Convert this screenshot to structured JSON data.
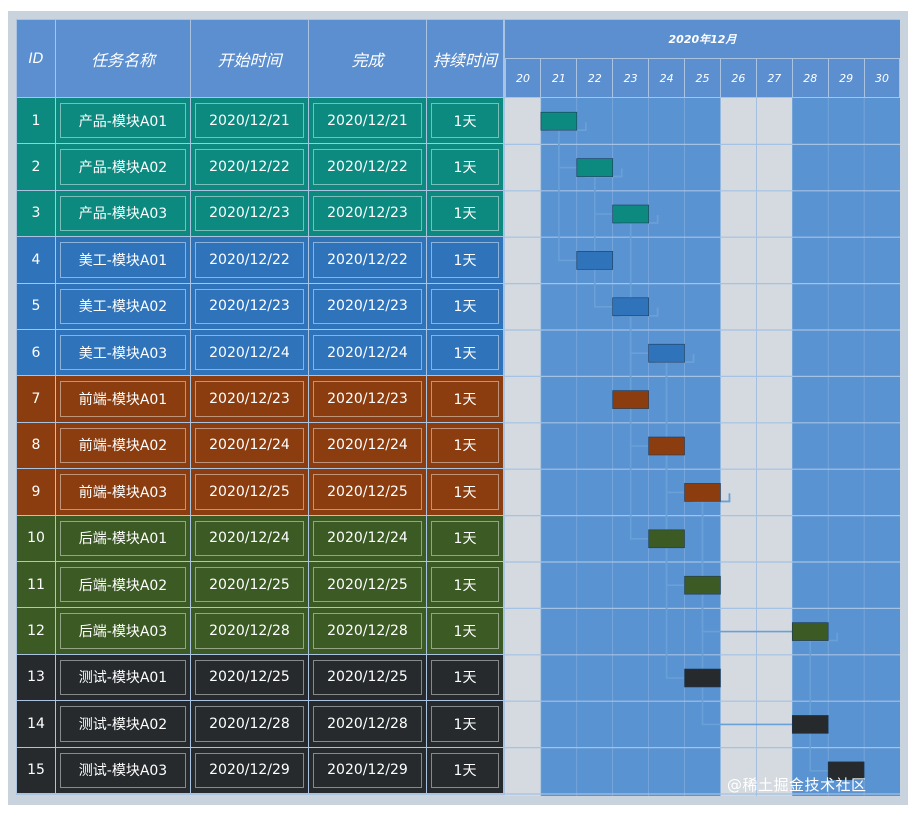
{
  "columns": {
    "id": "ID",
    "name": "任务名称",
    "start": "开始时间",
    "end": "完成",
    "duration": "持续时间"
  },
  "month_label": "2020年12月",
  "days": [
    "20",
    "21",
    "22",
    "23",
    "24",
    "25",
    "26",
    "27",
    "28",
    "29",
    "30"
  ],
  "weekend_days": [
    "20",
    "26",
    "27"
  ],
  "group_colors": {
    "product": "#0c8a80",
    "design": "#2f74bb",
    "frontend": "#8b3d10",
    "backend": "#3c5a24",
    "test": "#262a2d"
  },
  "watermark": "@稀土掘金技术社区",
  "chart_data": {
    "type": "gantt",
    "title": "2020年12月",
    "x_categories": [
      "20",
      "21",
      "22",
      "23",
      "24",
      "25",
      "26",
      "27",
      "28",
      "29",
      "30"
    ],
    "tasks": [
      {
        "id": "1",
        "name": "产品-模块A01",
        "start": "2020/12/21",
        "end": "2020/12/21",
        "duration": "1天",
        "group": "product",
        "day": 21
      },
      {
        "id": "2",
        "name": "产品-模块A02",
        "start": "2020/12/22",
        "end": "2020/12/22",
        "duration": "1天",
        "group": "product",
        "day": 22
      },
      {
        "id": "3",
        "name": "产品-模块A03",
        "start": "2020/12/23",
        "end": "2020/12/23",
        "duration": "1天",
        "group": "product",
        "day": 23
      },
      {
        "id": "4",
        "name": "美工-模块A01",
        "start": "2020/12/22",
        "end": "2020/12/22",
        "duration": "1天",
        "group": "design",
        "day": 22
      },
      {
        "id": "5",
        "name": "美工-模块A02",
        "start": "2020/12/23",
        "end": "2020/12/23",
        "duration": "1天",
        "group": "design",
        "day": 23
      },
      {
        "id": "6",
        "name": "美工-模块A03",
        "start": "2020/12/24",
        "end": "2020/12/24",
        "duration": "1天",
        "group": "design",
        "day": 24
      },
      {
        "id": "7",
        "name": "前端-模块A01",
        "start": "2020/12/23",
        "end": "2020/12/23",
        "duration": "1天",
        "group": "frontend",
        "day": 23
      },
      {
        "id": "8",
        "name": "前端-模块A02",
        "start": "2020/12/24",
        "end": "2020/12/24",
        "duration": "1天",
        "group": "frontend",
        "day": 24
      },
      {
        "id": "9",
        "name": "前端-模块A03",
        "start": "2020/12/25",
        "end": "2020/12/25",
        "duration": "1天",
        "group": "frontend",
        "day": 25
      },
      {
        "id": "10",
        "name": "后端-模块A01",
        "start": "2020/12/24",
        "end": "2020/12/24",
        "duration": "1天",
        "group": "backend",
        "day": 24
      },
      {
        "id": "11",
        "name": "后端-模块A02",
        "start": "2020/12/25",
        "end": "2020/12/25",
        "duration": "1天",
        "group": "backend",
        "day": 25
      },
      {
        "id": "12",
        "name": "后端-模块A03",
        "start": "2020/12/28",
        "end": "2020/12/28",
        "duration": "1天",
        "group": "backend",
        "day": 28
      },
      {
        "id": "13",
        "name": "测试-模块A01",
        "start": "2020/12/25",
        "end": "2020/12/25",
        "duration": "1天",
        "group": "test",
        "day": 25
      },
      {
        "id": "14",
        "name": "测试-模块A02",
        "start": "2020/12/28",
        "end": "2020/12/28",
        "duration": "1天",
        "group": "test",
        "day": 28
      },
      {
        "id": "15",
        "name": "测试-模块A03",
        "start": "2020/12/29",
        "end": "2020/12/29",
        "duration": "1天",
        "group": "test",
        "day": 29
      }
    ],
    "dependencies": [
      [
        "1",
        "2"
      ],
      [
        "1",
        "4"
      ],
      [
        "2",
        "3"
      ],
      [
        "2",
        "5"
      ],
      [
        "3",
        "6"
      ],
      [
        "3",
        "7"
      ],
      [
        "5",
        "8"
      ],
      [
        "5",
        "10"
      ],
      [
        "6",
        "9"
      ],
      [
        "6",
        "11"
      ],
      [
        "6",
        "13"
      ],
      [
        "9",
        "12"
      ],
      [
        "9",
        "14"
      ],
      [
        "12",
        "15"
      ]
    ]
  }
}
